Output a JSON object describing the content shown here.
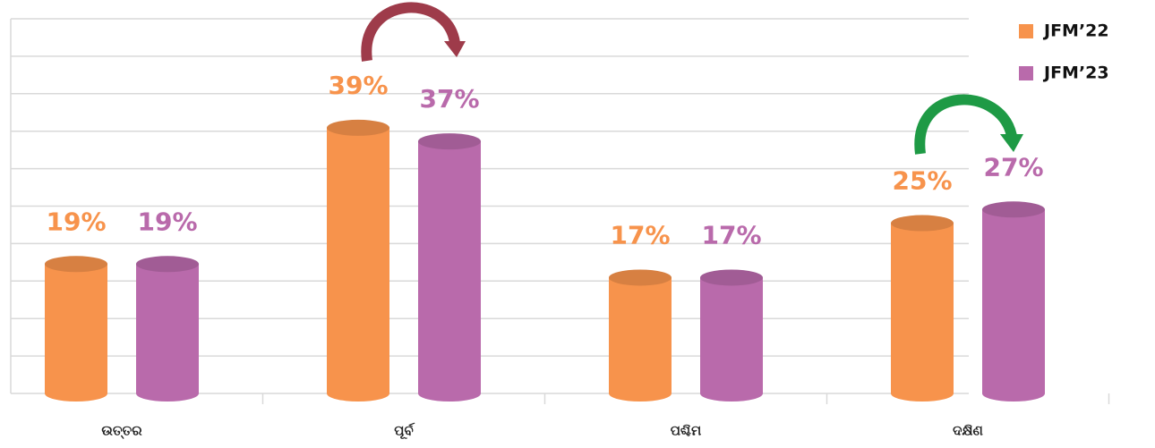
{
  "chart_data": {
    "type": "bar",
    "categories": [
      "ଉତ୍ତର",
      "ପୂର୍ବ",
      "ପଶ୍ଚିମ",
      "ଦକ୍ଷିଣ"
    ],
    "series": [
      {
        "name": "JFM’22",
        "color": "#f7934c",
        "values": [
          19,
          39,
          17,
          25
        ],
        "value_labels": [
          "19%",
          "39%",
          "17%",
          "25%"
        ]
      },
      {
        "name": "JFM’23",
        "color": "#b96aab",
        "values": [
          19,
          37,
          17,
          27
        ],
        "value_labels": [
          "19%",
          "37%",
          "17%",
          "27%"
        ]
      }
    ],
    "ylim": [
      0,
      55
    ],
    "yticks": [
      0,
      5.5,
      11,
      16.5,
      22,
      27.5,
      33,
      38.5,
      44,
      49.5,
      55
    ],
    "grid": true,
    "legend": "top-right"
  }
}
